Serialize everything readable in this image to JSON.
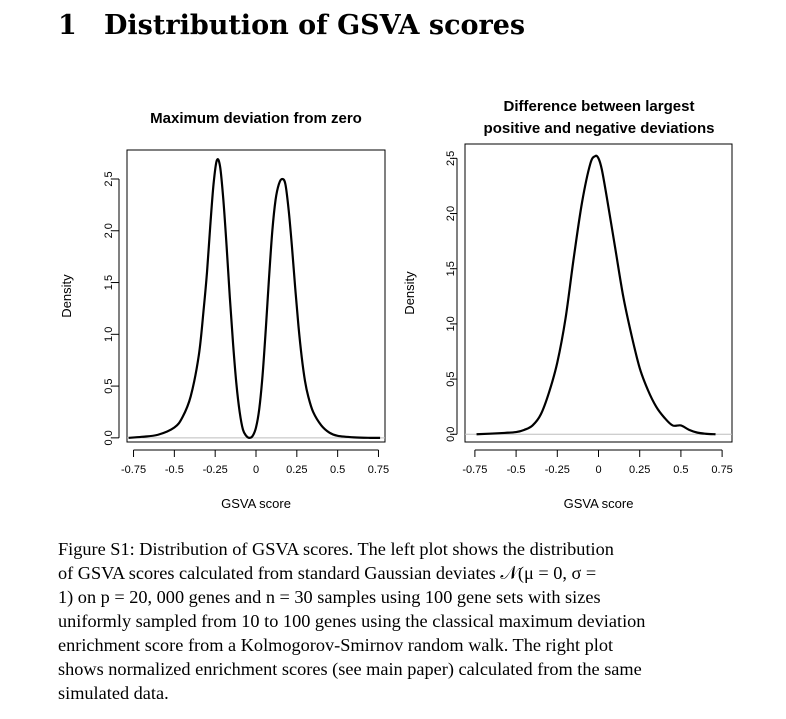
{
  "section": {
    "number": "1",
    "title": "Distribution of GSVA scores"
  },
  "chart_data": [
    {
      "type": "line",
      "title": "Maximum deviation from zero",
      "xlabel": "GSVA score",
      "ylabel": "Density",
      "x_ticks": [
        -0.75,
        -0.5,
        -0.25,
        0,
        0.25,
        0.5,
        0.75
      ],
      "x_tick_labels": [
        "-0.75",
        "-0.5",
        "-0.25",
        "0",
        "0.25",
        "0.5",
        "0.75"
      ],
      "y_ticks": [
        0.0,
        0.5,
        1.0,
        1.5,
        2.0,
        2.5
      ],
      "y_tick_labels": [
        "0.0",
        "0.5",
        "1.0",
        "1.5",
        "2.0",
        "2.5"
      ],
      "xlim": [
        -0.79,
        0.79
      ],
      "ylim": [
        -0.04,
        2.78
      ],
      "grid": false,
      "zero_line": true,
      "series": [
        {
          "x": [
            -0.78,
            -0.7,
            -0.6,
            -0.5,
            -0.45,
            -0.4,
            -0.35,
            -0.32,
            -0.3,
            -0.28,
            -0.26,
            -0.24,
            -0.22,
            -0.2,
            -0.18,
            -0.16,
            -0.14,
            -0.12,
            -0.1,
            -0.08,
            -0.06,
            -0.04,
            -0.02,
            0,
            0.02,
            0.04,
            0.06,
            0.08,
            0.1,
            0.12,
            0.14,
            0.16,
            0.18,
            0.2,
            0.22,
            0.24,
            0.26,
            0.28,
            0.3,
            0.32,
            0.35,
            0.4,
            0.45,
            0.5,
            0.6,
            0.7,
            0.76
          ],
          "values": [
            0.0,
            0.01,
            0.03,
            0.1,
            0.2,
            0.4,
            0.8,
            1.25,
            1.6,
            2.05,
            2.45,
            2.68,
            2.62,
            2.3,
            1.85,
            1.35,
            0.9,
            0.52,
            0.25,
            0.08,
            0.02,
            0.0,
            0.02,
            0.1,
            0.28,
            0.6,
            1.05,
            1.55,
            2.0,
            2.3,
            2.45,
            2.5,
            2.45,
            2.2,
            1.85,
            1.45,
            1.08,
            0.78,
            0.55,
            0.4,
            0.25,
            0.12,
            0.05,
            0.02,
            0.005,
            0.0,
            0.0
          ]
        }
      ]
    },
    {
      "type": "line",
      "title": "Difference between largest positive and negative deviations",
      "title_lines": [
        "Difference between largest",
        "positive and negative deviations"
      ],
      "xlabel": "GSVA score",
      "ylabel": "Density",
      "x_ticks": [
        -0.75,
        -0.5,
        -0.25,
        0,
        0.25,
        0.5,
        0.75
      ],
      "x_tick_labels": [
        "-0.75",
        "-0.5",
        "-0.25",
        "0",
        "0.25",
        "0.5",
        "0.75"
      ],
      "y_ticks": [
        0.0,
        0.5,
        1.0,
        1.5,
        2.0,
        2.5
      ],
      "y_tick_labels": [
        "0.0",
        "0.5",
        "1.0",
        "1.5",
        "2.0",
        "2.5"
      ],
      "xlim": [
        -0.81,
        0.81
      ],
      "ylim": [
        -0.07,
        2.63
      ],
      "grid": false,
      "zero_line": true,
      "series": [
        {
          "x": [
            -0.74,
            -0.6,
            -0.5,
            -0.45,
            -0.4,
            -0.35,
            -0.3,
            -0.25,
            -0.2,
            -0.15,
            -0.1,
            -0.05,
            -0.02,
            0,
            0.02,
            0.05,
            0.1,
            0.15,
            0.2,
            0.25,
            0.3,
            0.35,
            0.4,
            0.45,
            0.5,
            0.55,
            0.6,
            0.65,
            0.71
          ],
          "values": [
            0.0,
            0.01,
            0.02,
            0.04,
            0.08,
            0.18,
            0.38,
            0.65,
            1.05,
            1.6,
            2.1,
            2.45,
            2.52,
            2.5,
            2.4,
            2.15,
            1.7,
            1.25,
            0.9,
            0.6,
            0.4,
            0.25,
            0.15,
            0.08,
            0.08,
            0.04,
            0.015,
            0.005,
            0.0
          ]
        }
      ]
    }
  ],
  "caption": {
    "lines": [
      "Figure S1: Distribution of GSVA scores. The left plot shows the distribution",
      "of GSVA scores calculated from standard Gaussian deviates 𝒩(μ = 0, σ =",
      "1) on p = 20, 000 genes and n = 30 samples using 100 gene sets with sizes",
      "uniformly sampled from 10 to 100 genes using the classical maximum deviation",
      "enrichment score from a Kolmogorov-Smirnov random walk. The right plot",
      "shows normalized enrichment scores (see main paper) calculated from the same",
      "simulated data."
    ]
  }
}
